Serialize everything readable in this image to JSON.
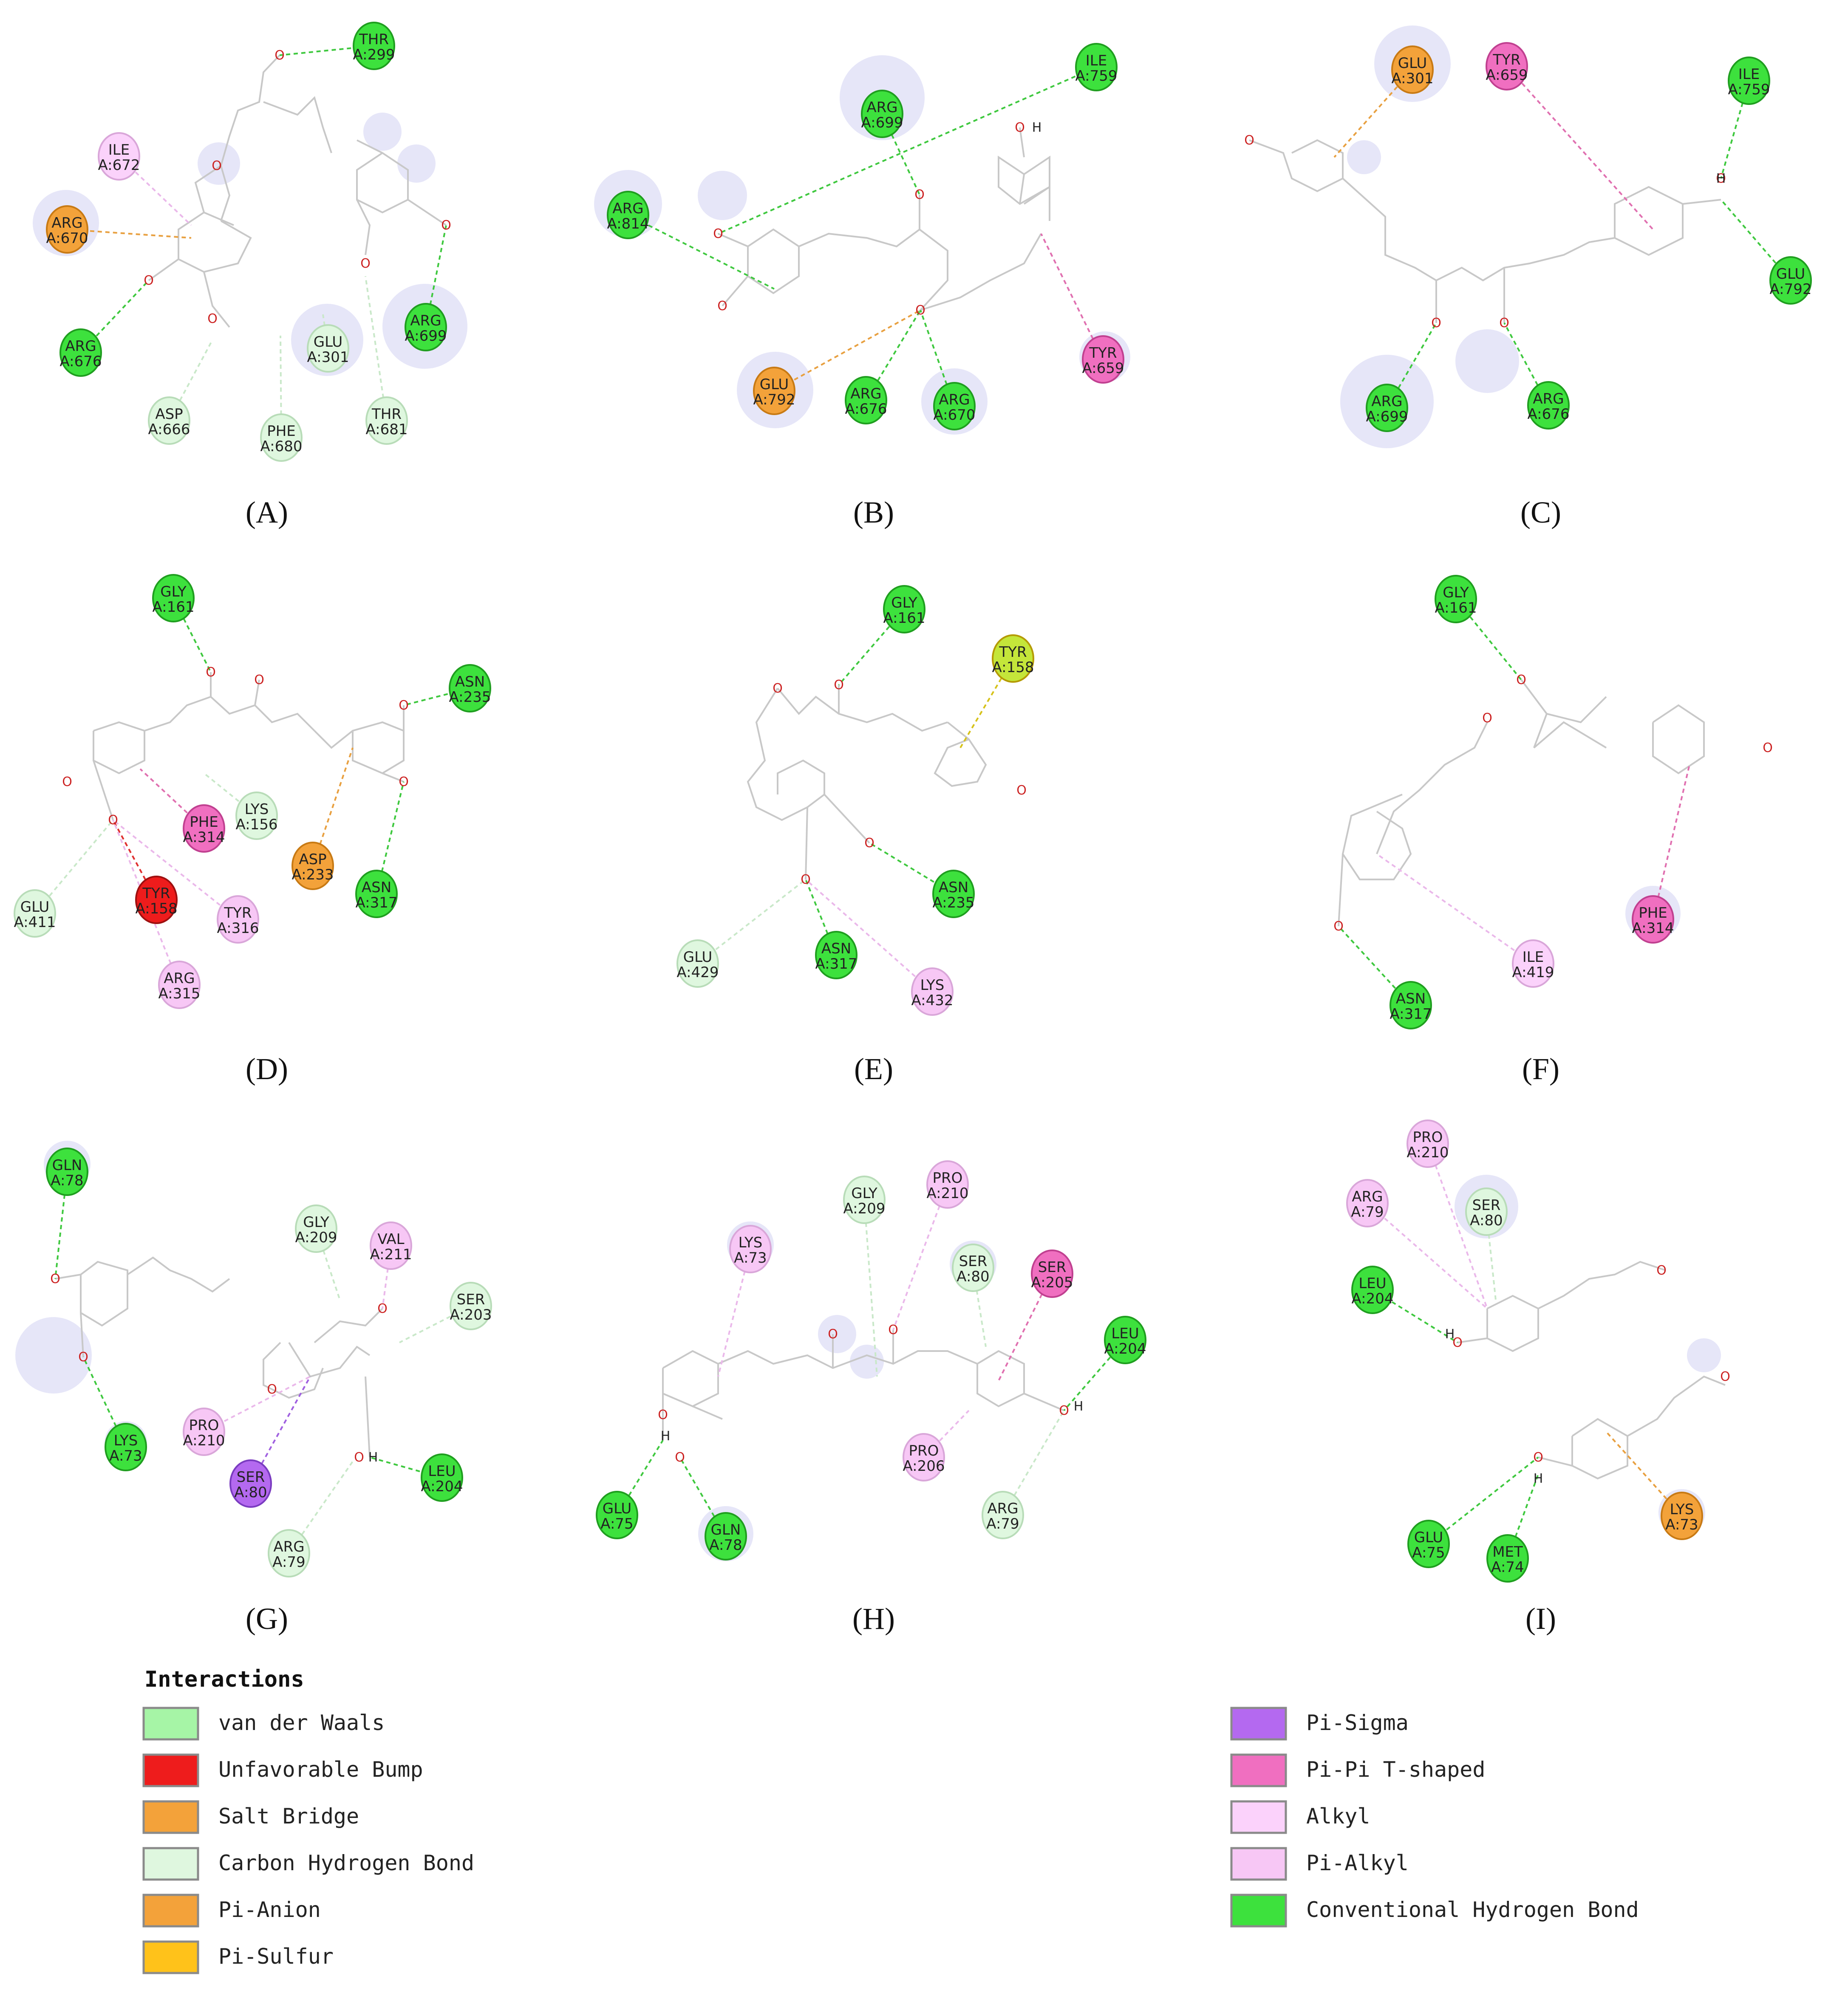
{
  "colors": {
    "van_der_waals": "#a6f5a6",
    "unfavorable_bump": "#ee1c1c",
    "salt_bridge": "#f3a23a",
    "carbon_hydrogen_bond": "#dff7df",
    "pi_anion": "#f3a23a",
    "pi_sulfur": "#ffc21a",
    "pi_sigma": "#b469f0",
    "pi_pi_t_shaped": "#f06fc0",
    "alkyl": "#fbd2fb",
    "pi_alkyl": "#f7c7f5",
    "conventional_hydrogen_bond": "#3de13d",
    "glow": "#c8c8f0",
    "bond": "#c8c8c8"
  },
  "panels": [
    {
      "label": "(A)",
      "residues": [
        {
          "name": "THR",
          "id": "A:299",
          "type": "conventional_hydrogen_bond"
        },
        {
          "name": "ILE",
          "id": "A:672",
          "type": "alkyl"
        },
        {
          "name": "ARG",
          "id": "A:670",
          "type": "salt_bridge"
        },
        {
          "name": "ARG",
          "id": "A:676",
          "type": "conventional_hydrogen_bond"
        },
        {
          "name": "ASP",
          "id": "A:666",
          "type": "carbon_hydrogen_bond"
        },
        {
          "name": "GLU",
          "id": "A:301",
          "type": "carbon_hydrogen_bond"
        },
        {
          "name": "PHE",
          "id": "A:680",
          "type": "carbon_hydrogen_bond"
        },
        {
          "name": "THR",
          "id": "A:681",
          "type": "carbon_hydrogen_bond"
        },
        {
          "name": "ARG",
          "id": "A:699",
          "type": "conventional_hydrogen_bond"
        }
      ]
    },
    {
      "label": "(B)",
      "residues": [
        {
          "name": "ARG",
          "id": "A:699",
          "type": "conventional_hydrogen_bond"
        },
        {
          "name": "ILE",
          "id": "A:759",
          "type": "conventional_hydrogen_bond"
        },
        {
          "name": "ARG",
          "id": "A:814",
          "type": "conventional_hydrogen_bond"
        },
        {
          "name": "GLU",
          "id": "A:792",
          "type": "pi_anion"
        },
        {
          "name": "ARG",
          "id": "A:676",
          "type": "conventional_hydrogen_bond"
        },
        {
          "name": "ARG",
          "id": "A:670",
          "type": "conventional_hydrogen_bond"
        },
        {
          "name": "TYR",
          "id": "A:659",
          "type": "pi_pi_t_shaped"
        }
      ]
    },
    {
      "label": "(C)",
      "residues": [
        {
          "name": "GLU",
          "id": "A:301",
          "type": "pi_anion"
        },
        {
          "name": "TYR",
          "id": "A:659",
          "type": "pi_pi_t_shaped"
        },
        {
          "name": "ILE",
          "id": "A:759",
          "type": "conventional_hydrogen_bond"
        },
        {
          "name": "GLU",
          "id": "A:792",
          "type": "conventional_hydrogen_bond"
        },
        {
          "name": "ARG",
          "id": "A:699",
          "type": "conventional_hydrogen_bond"
        },
        {
          "name": "ARG",
          "id": "A:676",
          "type": "conventional_hydrogen_bond"
        }
      ]
    },
    {
      "label": "(D)",
      "residues": [
        {
          "name": "GLY",
          "id": "A:161",
          "type": "conventional_hydrogen_bond"
        },
        {
          "name": "ASN",
          "id": "A:235",
          "type": "conventional_hydrogen_bond"
        },
        {
          "name": "PHE",
          "id": "A:314",
          "type": "pi_pi_t_shaped"
        },
        {
          "name": "LYS",
          "id": "A:156",
          "type": "carbon_hydrogen_bond"
        },
        {
          "name": "ASP",
          "id": "A:233",
          "type": "pi_anion"
        },
        {
          "name": "ASN",
          "id": "A:317",
          "type": "conventional_hydrogen_bond"
        },
        {
          "name": "GLU",
          "id": "A:411",
          "type": "carbon_hydrogen_bond"
        },
        {
          "name": "TYR",
          "id": "A:158",
          "type": "unfavorable_bump"
        },
        {
          "name": "TYR",
          "id": "A:316",
          "type": "pi_alkyl"
        },
        {
          "name": "ARG",
          "id": "A:315",
          "type": "pi_alkyl"
        }
      ]
    },
    {
      "label": "(E)",
      "residues": [
        {
          "name": "GLY",
          "id": "A:161",
          "type": "conventional_hydrogen_bond"
        },
        {
          "name": "TYR",
          "id": "A:158",
          "type": "pi_sulfur"
        },
        {
          "name": "ASN",
          "id": "A:235",
          "type": "conventional_hydrogen_bond"
        },
        {
          "name": "GLU",
          "id": "A:429",
          "type": "carbon_hydrogen_bond"
        },
        {
          "name": "ASN",
          "id": "A:317",
          "type": "conventional_hydrogen_bond"
        },
        {
          "name": "LYS",
          "id": "A:432",
          "type": "pi_alkyl"
        }
      ]
    },
    {
      "label": "(F)",
      "residues": [
        {
          "name": "GLY",
          "id": "A:161",
          "type": "conventional_hydrogen_bond"
        },
        {
          "name": "PHE",
          "id": "A:314",
          "type": "pi_pi_t_shaped"
        },
        {
          "name": "ILE",
          "id": "A:419",
          "type": "alkyl"
        },
        {
          "name": "ASN",
          "id": "A:317",
          "type": "conventional_hydrogen_bond"
        }
      ]
    },
    {
      "label": "(G)",
      "residues": [
        {
          "name": "GLN",
          "id": "A:78",
          "type": "conventional_hydrogen_bond"
        },
        {
          "name": "GLY",
          "id": "A:209",
          "type": "carbon_hydrogen_bond"
        },
        {
          "name": "VAL",
          "id": "A:211",
          "type": "pi_alkyl"
        },
        {
          "name": "SER",
          "id": "A:203",
          "type": "carbon_hydrogen_bond"
        },
        {
          "name": "PRO",
          "id": "A:210",
          "type": "pi_alkyl"
        },
        {
          "name": "LYS",
          "id": "A:73",
          "type": "conventional_hydrogen_bond"
        },
        {
          "name": "SER",
          "id": "A:80",
          "type": "pi_sigma"
        },
        {
          "name": "LEU",
          "id": "A:204",
          "type": "conventional_hydrogen_bond"
        },
        {
          "name": "ARG",
          "id": "A:79",
          "type": "carbon_hydrogen_bond"
        }
      ]
    },
    {
      "label": "(H)",
      "residues": [
        {
          "name": "GLY",
          "id": "A:209",
          "type": "carbon_hydrogen_bond"
        },
        {
          "name": "PRO",
          "id": "A:210",
          "type": "pi_alkyl"
        },
        {
          "name": "LYS",
          "id": "A:73",
          "type": "pi_alkyl"
        },
        {
          "name": "SER",
          "id": "A:80",
          "type": "carbon_hydrogen_bond"
        },
        {
          "name": "SER",
          "id": "A:205",
          "type": "pi_pi_t_shaped"
        },
        {
          "name": "LEU",
          "id": "A:204",
          "type": "conventional_hydrogen_bond"
        },
        {
          "name": "PRO",
          "id": "A:206",
          "type": "pi_alkyl"
        },
        {
          "name": "ARG",
          "id": "A:79",
          "type": "carbon_hydrogen_bond"
        },
        {
          "name": "GLU",
          "id": "A:75",
          "type": "conventional_hydrogen_bond"
        },
        {
          "name": "GLN",
          "id": "A:78",
          "type": "conventional_hydrogen_bond"
        }
      ]
    },
    {
      "label": "(I)",
      "residues": [
        {
          "name": "PRO",
          "id": "A:210",
          "type": "pi_alkyl"
        },
        {
          "name": "ARG",
          "id": "A:79",
          "type": "pi_alkyl"
        },
        {
          "name": "SER",
          "id": "A:80",
          "type": "carbon_hydrogen_bond"
        },
        {
          "name": "LEU",
          "id": "A:204",
          "type": "conventional_hydrogen_bond"
        },
        {
          "name": "GLU",
          "id": "A:75",
          "type": "conventional_hydrogen_bond"
        },
        {
          "name": "MET",
          "id": "A:74",
          "type": "conventional_hydrogen_bond"
        },
        {
          "name": "LYS",
          "id": "A:73",
          "type": "salt_bridge"
        }
      ]
    }
  ],
  "atom_labels": {
    "oxygen": "O",
    "hydrogen": "H"
  },
  "legend": {
    "title": "Interactions",
    "items_left": [
      {
        "label": "van der Waals",
        "type": "van_der_waals"
      },
      {
        "label": "Unfavorable Bump",
        "type": "unfavorable_bump"
      },
      {
        "label": "Salt Bridge",
        "type": "salt_bridge"
      },
      {
        "label": "Carbon Hydrogen Bond",
        "type": "carbon_hydrogen_bond"
      },
      {
        "label": "Pi-Anion",
        "type": "pi_anion"
      },
      {
        "label": "Pi-Sulfur",
        "type": "pi_sulfur"
      }
    ],
    "items_right": [
      {
        "label": "Pi-Sigma",
        "type": "pi_sigma"
      },
      {
        "label": "Pi-Pi T-shaped",
        "type": "pi_pi_t_shaped"
      },
      {
        "label": "Alkyl",
        "type": "alkyl"
      },
      {
        "label": "Pi-Alkyl",
        "type": "pi_alkyl"
      },
      {
        "label": "Conventional Hydrogen Bond",
        "type": "conventional_hydrogen_bond"
      }
    ]
  }
}
